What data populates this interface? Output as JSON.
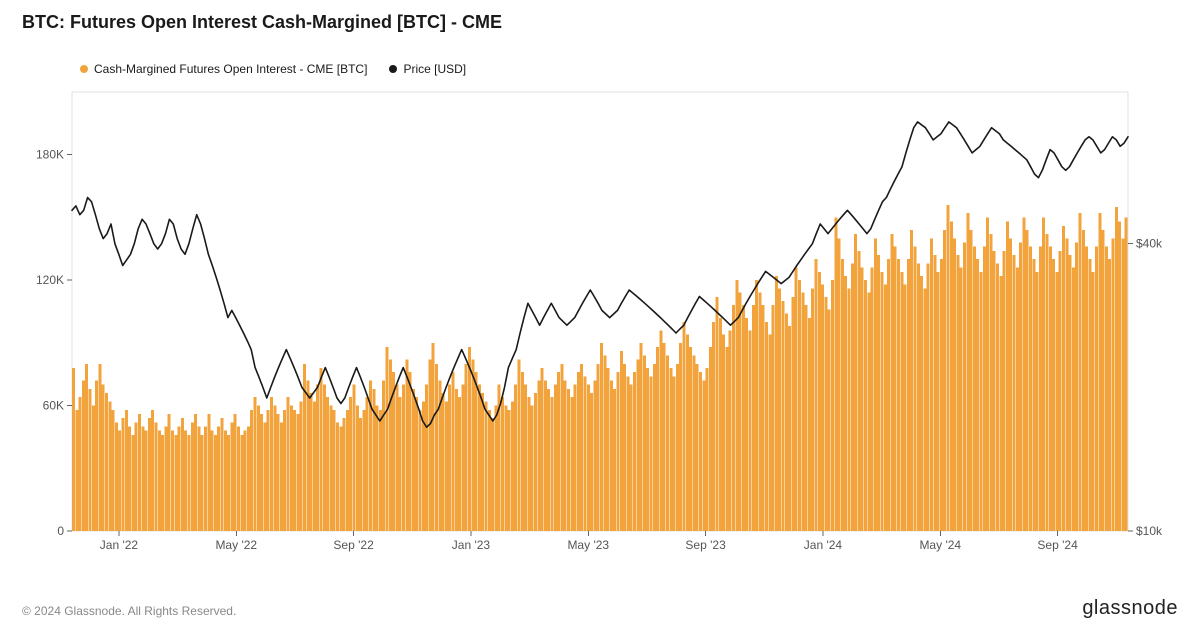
{
  "title": "BTC: Futures Open Interest Cash-Margined [BTC] - CME",
  "legend": {
    "series1": {
      "label": "Cash-Margined Futures Open Interest - CME [BTC]",
      "color": "#f2a33c"
    },
    "series2": {
      "label": "Price [USD]",
      "color": "#1a1a1a"
    }
  },
  "footer_copyright": "© 2024 Glassnode. All Rights Reserved.",
  "brand": "glassnode",
  "chart": {
    "type": "combo-bar-line",
    "background_color": "#ffffff",
    "border_color": "#e0e0e0",
    "x_ticks": [
      "Jan '22",
      "May '22",
      "Sep '22",
      "Jan '23",
      "May '23",
      "Sep '23",
      "Jan '24",
      "May '24",
      "Sep '24"
    ],
    "x_tick_color": "#555",
    "y_left": {
      "ticks": [
        0,
        60000,
        120000,
        180000
      ],
      "labels": [
        "0",
        "60K",
        "120K",
        "180K"
      ],
      "min": 0,
      "max": 210000
    },
    "y_right_log10": {
      "ticks": [
        10000,
        40000
      ],
      "labels": [
        "$10k",
        "$40k"
      ],
      "min_log": 4.0,
      "max_log": 4.92
    },
    "bars": {
      "color": "#f2a33c",
      "values": [
        78,
        58,
        64,
        72,
        80,
        68,
        60,
        72,
        80,
        70,
        66,
        62,
        58,
        52,
        48,
        54,
        58,
        50,
        46,
        52,
        56,
        50,
        48,
        54,
        58,
        52,
        48,
        46,
        50,
        56,
        48,
        46,
        50,
        54,
        48,
        46,
        52,
        56,
        50,
        46,
        50,
        56,
        48,
        46,
        50,
        54,
        48,
        46,
        52,
        56,
        50,
        46,
        48,
        50,
        58,
        64,
        60,
        56,
        52,
        58,
        64,
        60,
        56,
        52,
        58,
        64,
        60,
        58,
        56,
        62,
        80,
        72,
        66,
        62,
        70,
        78,
        70,
        64,
        60,
        58,
        52,
        50,
        54,
        58,
        64,
        70,
        60,
        54,
        58,
        64,
        72,
        68,
        60,
        58,
        72,
        88,
        82,
        76,
        70,
        64,
        70,
        82,
        76,
        68,
        64,
        58,
        62,
        70,
        82,
        90,
        80,
        72,
        66,
        62,
        70,
        76,
        68,
        64,
        70,
        80,
        88,
        82,
        76,
        70,
        66,
        62,
        58,
        54,
        60,
        70,
        64,
        60,
        58,
        62,
        70,
        82,
        76,
        70,
        64,
        60,
        66,
        72,
        78,
        72,
        68,
        64,
        70,
        76,
        80,
        72,
        68,
        64,
        70,
        76,
        80,
        74,
        70,
        66,
        72,
        80,
        90,
        84,
        78,
        72,
        68,
        76,
        86,
        80,
        74,
        70,
        76,
        82,
        90,
        84,
        78,
        74,
        80,
        88,
        96,
        90,
        84,
        78,
        74,
        80,
        90,
        100,
        94,
        88,
        84,
        80,
        76,
        72,
        78,
        88,
        100,
        112,
        102,
        94,
        88,
        96,
        108,
        120,
        114,
        108,
        102,
        96,
        108,
        120,
        114,
        108,
        100,
        94,
        108,
        122,
        116,
        110,
        104,
        98,
        112,
        126,
        120,
        114,
        108,
        102,
        116,
        130,
        124,
        118,
        112,
        106,
        120,
        150,
        140,
        130,
        122,
        116,
        128,
        142,
        134,
        126,
        120,
        114,
        126,
        140,
        132,
        124,
        118,
        130,
        142,
        136,
        130,
        124,
        118,
        130,
        144,
        136,
        128,
        122,
        116,
        128,
        140,
        132,
        124,
        130,
        144,
        156,
        148,
        140,
        132,
        126,
        138,
        152,
        144,
        136,
        130,
        124,
        136,
        150,
        142,
        134,
        128,
        122,
        134,
        148,
        140,
        132,
        126,
        138,
        150,
        144,
        136,
        130,
        124,
        136,
        150,
        142,
        136,
        130,
        124,
        134,
        146,
        140,
        132,
        126,
        138,
        152,
        144,
        136,
        130,
        124,
        136,
        152,
        144,
        136,
        130,
        140,
        155,
        148,
        140,
        150
      ],
      "max_value": 210
    },
    "price_line": {
      "color": "#1a1a1a",
      "points": [
        [
          0,
          47
        ],
        [
          4,
          48
        ],
        [
          8,
          46
        ],
        [
          12,
          47
        ],
        [
          16,
          50
        ],
        [
          20,
          49
        ],
        [
          24,
          46
        ],
        [
          28,
          43
        ],
        [
          32,
          41
        ],
        [
          36,
          42
        ],
        [
          40,
          44
        ],
        [
          44,
          40
        ],
        [
          48,
          38
        ],
        [
          52,
          36
        ],
        [
          56,
          37
        ],
        [
          60,
          38
        ],
        [
          64,
          40
        ],
        [
          68,
          43
        ],
        [
          72,
          45
        ],
        [
          76,
          44
        ],
        [
          80,
          42
        ],
        [
          84,
          40
        ],
        [
          88,
          39
        ],
        [
          92,
          40
        ],
        [
          96,
          42
        ],
        [
          100,
          45
        ],
        [
          104,
          44
        ],
        [
          108,
          41
        ],
        [
          112,
          39
        ],
        [
          116,
          38
        ],
        [
          120,
          40
        ],
        [
          124,
          43
        ],
        [
          128,
          46
        ],
        [
          132,
          44
        ],
        [
          136,
          41
        ],
        [
          140,
          38
        ],
        [
          144,
          36
        ],
        [
          148,
          34
        ],
        [
          152,
          32
        ],
        [
          156,
          30
        ],
        [
          160,
          28
        ],
        [
          164,
          29
        ],
        [
          168,
          28
        ],
        [
          172,
          27
        ],
        [
          176,
          26
        ],
        [
          180,
          25
        ],
        [
          184,
          24
        ],
        [
          188,
          22
        ],
        [
          192,
          21
        ],
        [
          196,
          20
        ],
        [
          200,
          19
        ],
        [
          204,
          20
        ],
        [
          208,
          21
        ],
        [
          212,
          22
        ],
        [
          216,
          23
        ],
        [
          220,
          24
        ],
        [
          224,
          23
        ],
        [
          228,
          22
        ],
        [
          232,
          21
        ],
        [
          236,
          20
        ],
        [
          240,
          19.5
        ],
        [
          244,
          19
        ],
        [
          248,
          19.5
        ],
        [
          252,
          20
        ],
        [
          256,
          21
        ],
        [
          260,
          22
        ],
        [
          264,
          21
        ],
        [
          268,
          20
        ],
        [
          272,
          19
        ],
        [
          276,
          18.5
        ],
        [
          280,
          19
        ],
        [
          284,
          20
        ],
        [
          288,
          21
        ],
        [
          292,
          22
        ],
        [
          296,
          21
        ],
        [
          300,
          20
        ],
        [
          304,
          19
        ],
        [
          308,
          18
        ],
        [
          312,
          17.5
        ],
        [
          316,
          17
        ],
        [
          320,
          17.5
        ],
        [
          324,
          18
        ],
        [
          328,
          19
        ],
        [
          332,
          20
        ],
        [
          336,
          21
        ],
        [
          340,
          22
        ],
        [
          344,
          21
        ],
        [
          348,
          20
        ],
        [
          352,
          19
        ],
        [
          356,
          18
        ],
        [
          360,
          17
        ],
        [
          364,
          16.5
        ],
        [
          368,
          16.8
        ],
        [
          372,
          17.5
        ],
        [
          376,
          18
        ],
        [
          380,
          19
        ],
        [
          384,
          20
        ],
        [
          388,
          21
        ],
        [
          392,
          22
        ],
        [
          396,
          23
        ],
        [
          400,
          24
        ],
        [
          404,
          23
        ],
        [
          408,
          22
        ],
        [
          412,
          21
        ],
        [
          416,
          20
        ],
        [
          420,
          19
        ],
        [
          424,
          18
        ],
        [
          428,
          17.5
        ],
        [
          432,
          17
        ],
        [
          436,
          17.5
        ],
        [
          440,
          18.5
        ],
        [
          444,
          20
        ],
        [
          448,
          22
        ],
        [
          452,
          23
        ],
        [
          456,
          24
        ],
        [
          460,
          26
        ],
        [
          464,
          28
        ],
        [
          468,
          30
        ],
        [
          472,
          29
        ],
        [
          476,
          28
        ],
        [
          480,
          27
        ],
        [
          484,
          28
        ],
        [
          488,
          29
        ],
        [
          492,
          30
        ],
        [
          496,
          29
        ],
        [
          500,
          28
        ],
        [
          504,
          27.5
        ],
        [
          508,
          27
        ],
        [
          512,
          27.5
        ],
        [
          516,
          28
        ],
        [
          520,
          29
        ],
        [
          524,
          30
        ],
        [
          528,
          31
        ],
        [
          532,
          32
        ],
        [
          536,
          31
        ],
        [
          540,
          30
        ],
        [
          544,
          29
        ],
        [
          548,
          28.5
        ],
        [
          552,
          28
        ],
        [
          556,
          28.5
        ],
        [
          560,
          29
        ],
        [
          564,
          30
        ],
        [
          568,
          31
        ],
        [
          572,
          32
        ],
        [
          576,
          31.5
        ],
        [
          580,
          31
        ],
        [
          584,
          30.5
        ],
        [
          588,
          30
        ],
        [
          592,
          29.5
        ],
        [
          596,
          29
        ],
        [
          600,
          28.5
        ],
        [
          604,
          28
        ],
        [
          608,
          27.5
        ],
        [
          612,
          27
        ],
        [
          616,
          26.5
        ],
        [
          620,
          26
        ],
        [
          624,
          26.5
        ],
        [
          628,
          27
        ],
        [
          632,
          28
        ],
        [
          636,
          29
        ],
        [
          640,
          30
        ],
        [
          644,
          31
        ],
        [
          648,
          30.5
        ],
        [
          652,
          30
        ],
        [
          656,
          29.5
        ],
        [
          660,
          29
        ],
        [
          664,
          28.5
        ],
        [
          668,
          28
        ],
        [
          672,
          27.5
        ],
        [
          676,
          27
        ],
        [
          680,
          27.5
        ],
        [
          684,
          28
        ],
        [
          688,
          29
        ],
        [
          692,
          30
        ],
        [
          696,
          31
        ],
        [
          700,
          32
        ],
        [
          704,
          33
        ],
        [
          708,
          34
        ],
        [
          712,
          35
        ],
        [
          716,
          34.5
        ],
        [
          720,
          34
        ],
        [
          724,
          33.5
        ],
        [
          728,
          33
        ],
        [
          732,
          33.5
        ],
        [
          736,
          34
        ],
        [
          740,
          35
        ],
        [
          744,
          36
        ],
        [
          748,
          37
        ],
        [
          752,
          38
        ],
        [
          756,
          39
        ],
        [
          760,
          40
        ],
        [
          764,
          42
        ],
        [
          768,
          44
        ],
        [
          772,
          43
        ],
        [
          776,
          42
        ],
        [
          780,
          43
        ],
        [
          784,
          44
        ],
        [
          788,
          45
        ],
        [
          792,
          46
        ],
        [
          796,
          47
        ],
        [
          800,
          46
        ],
        [
          804,
          45
        ],
        [
          808,
          44
        ],
        [
          812,
          43
        ],
        [
          816,
          42
        ],
        [
          820,
          43
        ],
        [
          824,
          45
        ],
        [
          828,
          47
        ],
        [
          832,
          49
        ],
        [
          836,
          50
        ],
        [
          840,
          52
        ],
        [
          844,
          54
        ],
        [
          848,
          56
        ],
        [
          852,
          58
        ],
        [
          856,
          62
        ],
        [
          860,
          66
        ],
        [
          864,
          70
        ],
        [
          868,
          72
        ],
        [
          872,
          71
        ],
        [
          876,
          70
        ],
        [
          880,
          68
        ],
        [
          884,
          66
        ],
        [
          888,
          67
        ],
        [
          892,
          68
        ],
        [
          896,
          70
        ],
        [
          900,
          72
        ],
        [
          904,
          71
        ],
        [
          908,
          70
        ],
        [
          912,
          68
        ],
        [
          916,
          66
        ],
        [
          920,
          64
        ],
        [
          924,
          62
        ],
        [
          928,
          63
        ],
        [
          932,
          64
        ],
        [
          936,
          66
        ],
        [
          940,
          68
        ],
        [
          944,
          70
        ],
        [
          948,
          69
        ],
        [
          952,
          68
        ],
        [
          956,
          66
        ],
        [
          960,
          65
        ],
        [
          964,
          64
        ],
        [
          968,
          63
        ],
        [
          972,
          62
        ],
        [
          976,
          61
        ],
        [
          980,
          60
        ],
        [
          984,
          58
        ],
        [
          988,
          56
        ],
        [
          992,
          55
        ],
        [
          996,
          57
        ],
        [
          1000,
          60
        ],
        [
          1004,
          63
        ],
        [
          1008,
          62
        ],
        [
          1012,
          60
        ],
        [
          1016,
          58
        ],
        [
          1020,
          57
        ],
        [
          1024,
          58
        ],
        [
          1028,
          60
        ],
        [
          1032,
          62
        ],
        [
          1036,
          64
        ],
        [
          1040,
          66
        ],
        [
          1044,
          67
        ],
        [
          1048,
          66
        ],
        [
          1052,
          64
        ],
        [
          1056,
          62
        ],
        [
          1060,
          63
        ],
        [
          1064,
          65
        ],
        [
          1068,
          67
        ],
        [
          1072,
          66
        ],
        [
          1076,
          64
        ],
        [
          1080,
          65
        ],
        [
          1084,
          67
        ]
      ],
      "x_domain": [
        0,
        1084
      ],
      "y_domain_kusd": [
        10,
        80
      ]
    }
  }
}
